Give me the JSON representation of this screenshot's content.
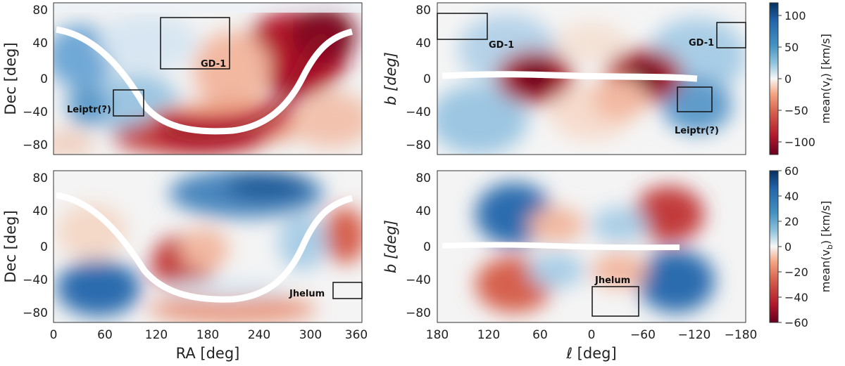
{
  "chart_data": [
    {
      "type": "heatmap",
      "panel": "top-left",
      "quantity": "mean proper motion velocity v_l*",
      "x": {
        "label": "",
        "range": [
          0,
          360
        ],
        "ticks": [
          "0",
          "60",
          "120",
          "180",
          "240",
          "300",
          "360"
        ]
      },
      "y": {
        "label": "Dec [deg]",
        "range": [
          -90,
          90
        ],
        "ticks": [
          "80",
          "40",
          "0",
          "−40",
          "−80"
        ]
      },
      "annotations": [
        {
          "text": "GD-1",
          "box_ra": [
            125,
            205
          ],
          "box_dec": [
            10,
            75
          ]
        },
        {
          "text": "Leiptr(?)",
          "box_ra": [
            70,
            103
          ],
          "box_dec": [
            -45,
            -12
          ]
        }
      ]
    },
    {
      "type": "heatmap",
      "panel": "top-right",
      "quantity": "mean proper motion velocity v_l*",
      "x": {
        "label": "",
        "range": [
          180,
          -180
        ],
        "ticks": [
          "180",
          "120",
          "60",
          "0",
          "−60",
          "−120",
          "−180"
        ]
      },
      "y": {
        "label": "b [deg]",
        "range": [
          -90,
          90
        ],
        "ticks": [
          "80",
          "40",
          "0",
          "−40",
          "−80"
        ]
      },
      "annotations": [
        {
          "text": "GD-1",
          "box_l": [
            180,
            117
          ],
          "box_b": [
            48,
            75
          ]
        },
        {
          "text": "GD-1",
          "box_l": [
            -152,
            -180
          ],
          "box_b": [
            37,
            57
          ]
        },
        {
          "text": "Leiptr(?)",
          "box_l": [
            -97,
            -137
          ],
          "box_b": [
            -40,
            -16
          ]
        }
      ]
    },
    {
      "type": "heatmap",
      "panel": "bottom-left",
      "quantity": "mean proper motion velocity v_b*",
      "x": {
        "label": "RA [deg]",
        "range": [
          0,
          360
        ],
        "ticks": [
          "0",
          "60",
          "120",
          "180",
          "240",
          "300",
          "360"
        ]
      },
      "y": {
        "label": "Dec [deg]",
        "range": [
          -90,
          90
        ],
        "ticks": [
          "80",
          "40",
          "0",
          "−40",
          "−80"
        ]
      },
      "annotations": [
        {
          "text": "Jhelum",
          "box_ra": [
            330,
            360
          ],
          "box_dec": [
            -60,
            -40
          ]
        }
      ]
    },
    {
      "type": "heatmap",
      "panel": "bottom-right",
      "quantity": "mean proper motion velocity v_b*",
      "x": {
        "label": "ℓ [deg]",
        "range": [
          180,
          -180
        ],
        "ticks": [
          "180",
          "120",
          "60",
          "0",
          "−60",
          "−120",
          "−180"
        ]
      },
      "y": {
        "label": "b [deg]",
        "range": [
          -90,
          90
        ],
        "ticks": [
          "80",
          "40",
          "0",
          "−40",
          "−80"
        ]
      },
      "annotations": [
        {
          "text": "Jhelum",
          "box_l": [
            2,
            -58
          ],
          "box_b": [
            -83,
            -45
          ]
        }
      ]
    }
  ],
  "colorbars": [
    {
      "label_main": "mean(v",
      "label_sub": "ℓ",
      "label_tail": ") [km/s]",
      "range": [
        -120,
        120
      ],
      "ticks": [
        "100",
        "50",
        "0",
        "−50",
        "−100"
      ],
      "tick_values": [
        100,
        50,
        0,
        -50,
        -100
      ]
    },
    {
      "label_main": "mean(v",
      "label_sub": "b",
      "label_tail": ") [km/s]",
      "range": [
        -60,
        60
      ],
      "ticks": [
        "60",
        "40",
        "20",
        "0",
        "−20",
        "−40",
        "−60"
      ],
      "tick_values": [
        60,
        40,
        20,
        0,
        -20,
        -40,
        -60
      ]
    }
  ],
  "colors": {
    "positive": "#08306b",
    "mid": "#f7f7f7",
    "negative": "#67001f"
  }
}
